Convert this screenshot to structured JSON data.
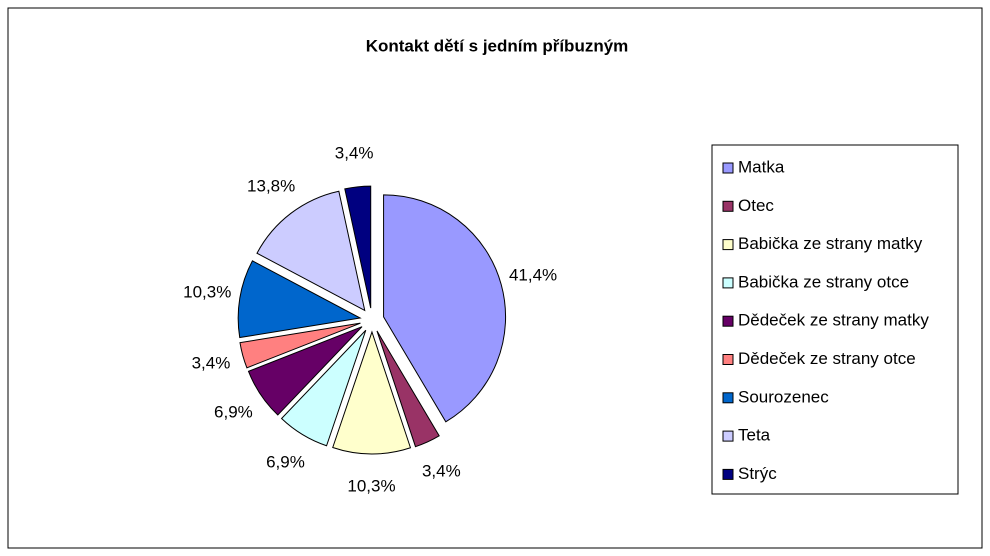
{
  "chart_data": {
    "type": "pie",
    "title": "Kontakt dětí s jedním příbuzným",
    "categories": [
      "Matka",
      "Otec",
      "Babička ze strany matky",
      "Babička ze strany otce",
      "Dědeček ze strany matky",
      "Dědeček ze strany otce",
      "Sourozenec",
      "Teta",
      "Strýc"
    ],
    "values": [
      41.4,
      3.4,
      10.3,
      6.9,
      6.9,
      3.4,
      10.3,
      13.8,
      3.4
    ],
    "value_labels": [
      "41,4%",
      "3,4%",
      "10,3%",
      "6,9%",
      "6,9%",
      "3,4%",
      "10,3%",
      "13,8%",
      "3,4%"
    ],
    "colors": [
      "#9999ff",
      "#993366",
      "#ffffcc",
      "#ccffff",
      "#660066",
      "#ff8080",
      "#0066cc",
      "#ccccff",
      "#000080"
    ],
    "legend": "right"
  }
}
